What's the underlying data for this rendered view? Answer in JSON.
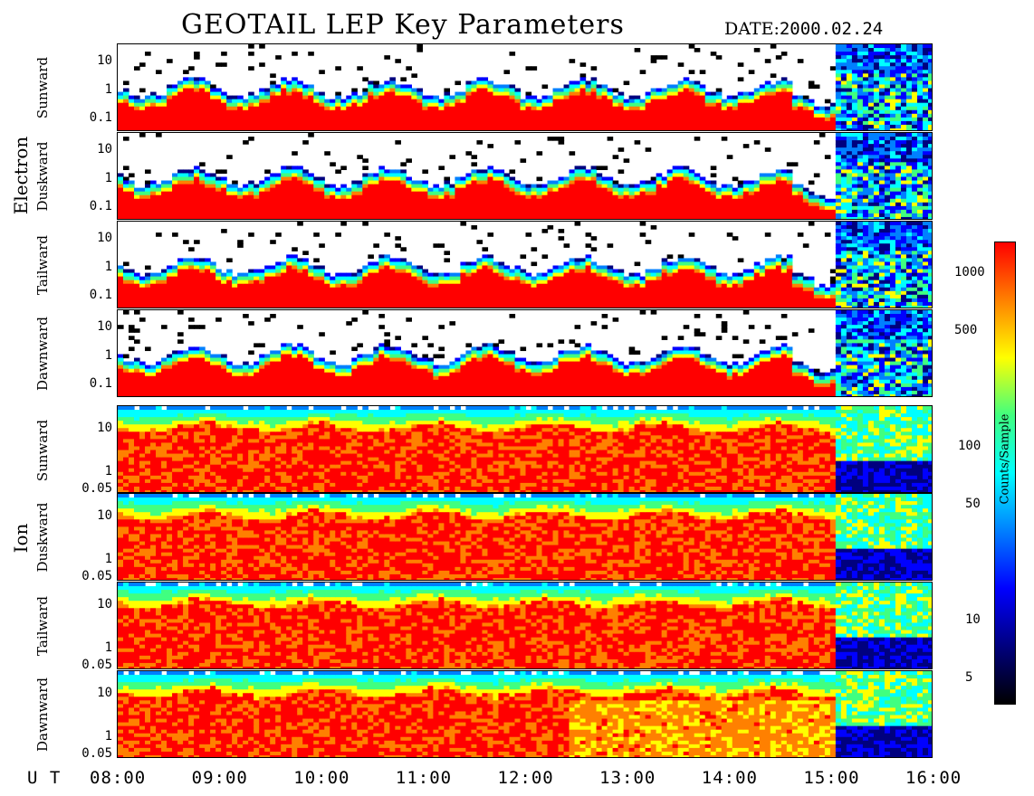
{
  "title": "GEOTAIL LEP Key Parameters",
  "date_label": "DATE:",
  "date_value": "2000.02.24",
  "groups": [
    {
      "label": "Electron",
      "panels": [
        "Sunward",
        "Duskward",
        "Tailward",
        "Dawnward"
      ],
      "yticks": [
        "10",
        "1",
        "0.1"
      ]
    },
    {
      "label": "Ion",
      "panels": [
        "Sunward",
        "Duskward",
        "Tailward",
        "Dawnward"
      ],
      "yticks": [
        "10",
        "1",
        "0.05"
      ]
    }
  ],
  "x_axis_label": "U T",
  "x_ticks": [
    "08:00",
    "09:00",
    "10:00",
    "11:00",
    "12:00",
    "13:00",
    "14:00",
    "15:00",
    "16:00"
  ],
  "colorbar": {
    "title": "Counts/Sample",
    "ticks": [
      "1000",
      "500",
      "100",
      "50",
      "10",
      "5"
    ],
    "colors": [
      "#000000",
      "#00007f",
      "#0000ff",
      "#0080ff",
      "#00ffff",
      "#40ff80",
      "#ffff00",
      "#ff8000",
      "#ff0000"
    ]
  },
  "chart_data": {
    "type": "heatmap",
    "title": "GEOTAIL LEP Key Parameters",
    "x_range": [
      "08:00",
      "16:00"
    ],
    "x_unit": "UT",
    "colorbar_label": "Counts/Sample",
    "colorbar_log": true,
    "panels": [
      {
        "group": "Electron",
        "name": "Sunward",
        "y_log": true,
        "y_ticks": [
          0.1,
          1,
          10
        ]
      },
      {
        "group": "Electron",
        "name": "Duskward",
        "y_log": true,
        "y_ticks": [
          0.1,
          1,
          10
        ]
      },
      {
        "group": "Electron",
        "name": "Tailward",
        "y_log": true,
        "y_ticks": [
          0.1,
          1,
          10
        ]
      },
      {
        "group": "Electron",
        "name": "Dawnward",
        "y_log": true,
        "y_ticks": [
          0.1,
          1,
          10
        ]
      },
      {
        "group": "Ion",
        "name": "Sunward",
        "y_log": true,
        "y_ticks": [
          0.05,
          1,
          10
        ]
      },
      {
        "group": "Ion",
        "name": "Duskward",
        "y_log": true,
        "y_ticks": [
          0.05,
          1,
          10
        ]
      },
      {
        "group": "Ion",
        "name": "Tailward",
        "y_log": true,
        "y_ticks": [
          0.05,
          1,
          10
        ]
      },
      {
        "group": "Ion",
        "name": "Dawnward",
        "y_log": true,
        "y_ticks": [
          0.05,
          1,
          10
        ]
      }
    ]
  }
}
